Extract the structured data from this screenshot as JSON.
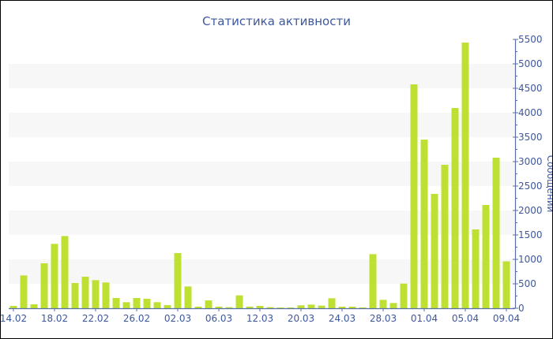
{
  "chart_data": {
    "type": "bar",
    "title": "Статистика активности",
    "ylabel": "Сообщений",
    "xlabel": "",
    "ylim": [
      0,
      5500
    ],
    "yticks": [
      0,
      500,
      1000,
      1500,
      2000,
      2500,
      3000,
      3500,
      4000,
      4500,
      5000,
      5500
    ],
    "y_axis_side": "right",
    "grid": "alternating horizontal bands",
    "tick_labels": [
      "14.02",
      "18.02",
      "22.02",
      "26.02",
      "02.03",
      "06.03",
      "12.03",
      "20.03",
      "24.03",
      "28.03",
      "01.04",
      "05.04",
      "09.04"
    ],
    "tick_every_n_bars": 4,
    "values": [
      48,
      672,
      81,
      919,
      1317,
      1478,
      516,
      645,
      575,
      527,
      210,
      124,
      210,
      194,
      124,
      65,
      1129,
      446,
      32,
      161,
      32,
      22,
      263,
      32,
      48,
      22,
      15,
      15,
      60,
      75,
      54,
      204,
      32,
      32,
      16,
      1107,
      172,
      108,
      505,
      4580,
      3450,
      2340,
      2935,
      4097,
      5435,
      1613,
      2113,
      3080,
      960
    ],
    "colors": {
      "bar": "#bde032",
      "axis": "#5a6fa8",
      "text": "#3d58a0",
      "band": "#f7f7f7"
    }
  }
}
